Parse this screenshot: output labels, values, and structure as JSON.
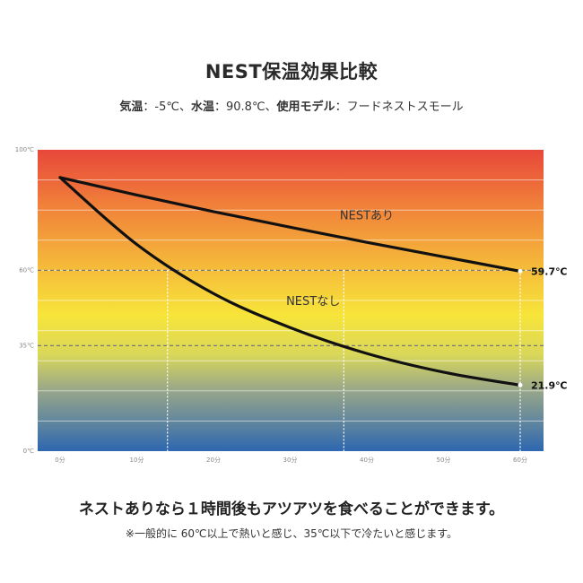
{
  "title": "NEST保温効果比較",
  "subtitle": {
    "air_label": "気温",
    "air_value": "：-5℃、",
    "water_label": "水温",
    "water_value": "：90.8℃、",
    "model_label": "使用モデル",
    "model_value": "：フードネストスモール"
  },
  "headline": "ネストありなら１時間後もアツアツを食べることができます。",
  "note": "※一般的に 60℃以上で熱いと感じ、35℃以下で冷たいと感じます。",
  "chart_data": {
    "type": "line",
    "x_unit": "分",
    "x": [
      0,
      10,
      20,
      30,
      40,
      50,
      60
    ],
    "xticklabels": [
      "0分",
      "10分",
      "20分",
      "30分",
      "40分",
      "50分",
      "60分"
    ],
    "xlim": [
      0,
      62
    ],
    "ylim": [
      0,
      100
    ],
    "yticks": [
      100,
      60,
      35,
      0
    ],
    "yticklabels": [
      "100℃",
      "60℃",
      "35℃",
      "0℃"
    ],
    "reference_lines": [
      60,
      35
    ],
    "crossing_markers_x": [
      14,
      37
    ],
    "background": "vertical temperature gradient red (top) to blue (bottom)",
    "series": [
      {
        "name": "NESTあり",
        "values": [
          90.8,
          85.0,
          79.5,
          74.3,
          69.3,
          64.5,
          59.7
        ],
        "end_label": "59.7℃",
        "color": "#111111"
      },
      {
        "name": "NESTなし",
        "values": [
          90.8,
          68.6,
          52.3,
          41.0,
          32.4,
          26.2,
          21.9
        ],
        "end_label": "21.9℃",
        "color": "#111111"
      }
    ]
  },
  "colors": {
    "gradient_top": "#e8473a",
    "gradient_mid_orange": "#f4a23a",
    "gradient_yellow": "#f7e53a",
    "gradient_olive": "#bdbd6a",
    "gradient_bottom": "#2e67b0",
    "line": "#111111"
  }
}
